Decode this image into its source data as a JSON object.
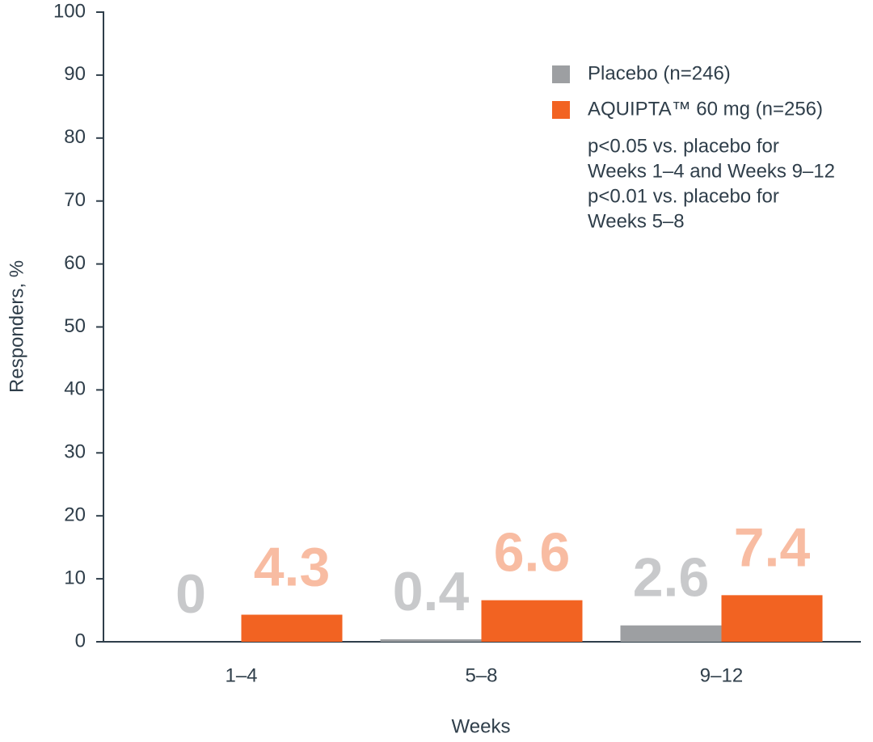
{
  "chart_data": {
    "type": "bar",
    "x_label": "Weeks",
    "y_label": "Responders, %",
    "categories": [
      "1–4",
      "5–8",
      "9–12"
    ],
    "series": [
      {
        "name": "Placebo (n=246)",
        "color": "#9d9fa2",
        "label_color": "#c8c9cb",
        "values": [
          0,
          0.4,
          2.6
        ]
      },
      {
        "name": "AQUIPTA™ 60 mg (n=256)",
        "color": "#f26322",
        "label_color": "#f8bca2",
        "values": [
          4.3,
          6.6,
          7.4
        ]
      }
    ],
    "annotations": [
      "p<0.05 vs. placebo for",
      "Weeks 1–4 and Weeks 9–12",
      "p<0.01 vs. placebo for",
      "Weeks 5–8"
    ],
    "ylim": [
      0,
      100
    ],
    "yticks": [
      0,
      10,
      20,
      30,
      40,
      50,
      60,
      70,
      80,
      90,
      100
    ],
    "legend": "upper right"
  }
}
